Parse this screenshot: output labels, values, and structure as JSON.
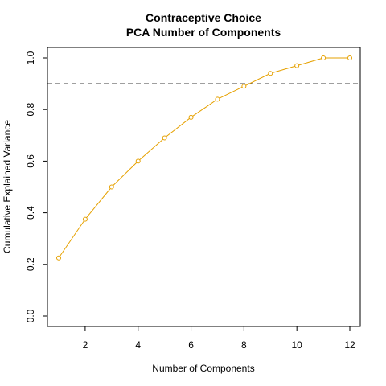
{
  "chart_data": {
    "type": "line",
    "title": "Contraceptive Choice",
    "subtitle": "PCA Number of Components",
    "xlabel": "Number of Components",
    "ylabel": "Cumulative Explained Variance",
    "x": [
      1,
      2,
      3,
      4,
      5,
      6,
      7,
      8,
      9,
      10,
      11,
      12
    ],
    "y": [
      0.225,
      0.375,
      0.5,
      0.6,
      0.69,
      0.77,
      0.84,
      0.89,
      0.94,
      0.97,
      1.0,
      1.0
    ],
    "xlim": [
      0.6,
      12.4
    ],
    "ylim": [
      0.0,
      1.0
    ],
    "x_ticks": [
      2,
      4,
      6,
      8,
      10,
      12
    ],
    "y_ticks": [
      0.0,
      0.2,
      0.4,
      0.6,
      0.8,
      1.0
    ],
    "x_tick_labels": [
      "2",
      "4",
      "6",
      "8",
      "10",
      "12"
    ],
    "y_tick_labels": [
      "0.0",
      "0.2",
      "0.4",
      "0.6",
      "0.8",
      "1.0"
    ],
    "reference_line": {
      "y": 0.9,
      "style": "dashed",
      "color": "#000000"
    },
    "line_color": "#E6A100",
    "marker": "open-circle",
    "grid": false,
    "legend": "none"
  }
}
